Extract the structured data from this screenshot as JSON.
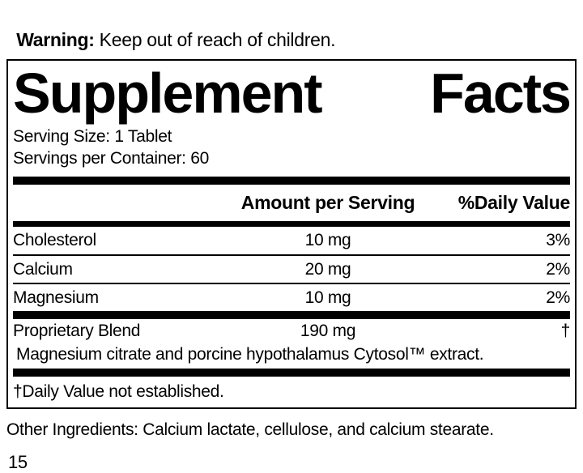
{
  "warning": {
    "label": "Warning:",
    "text": " Keep out of reach of children."
  },
  "label": {
    "title_left": "Supplement",
    "title_right": "Facts",
    "serving_size": "Serving Size: 1 Tablet",
    "servings_per_container": "Servings per Container: 60",
    "header": {
      "amount": "Amount per Serving",
      "daily_value": "%Daily Value"
    },
    "rows": [
      {
        "name": "Cholesterol",
        "amount": "10 mg",
        "dv": "3%"
      },
      {
        "name": "Calcium",
        "amount": "20 mg",
        "dv": "2%"
      },
      {
        "name": "Magnesium",
        "amount": "10 mg",
        "dv": "2%"
      }
    ],
    "blend": {
      "name": "Proprietary Blend",
      "amount": "190 mg",
      "dv": "†",
      "description": "Magnesium citrate and porcine hypothalamus Cytosol™ extract."
    },
    "footnote": "†Daily Value not established."
  },
  "other_ingredients": "Other Ingredients: Calcium lactate, cellulose, and calcium stearate.",
  "page_number": "15"
}
